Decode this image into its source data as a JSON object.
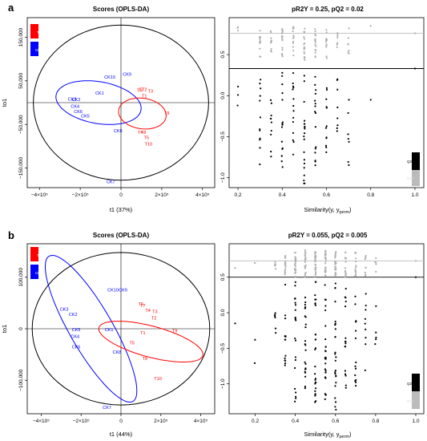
{
  "panels": [
    {
      "letter": "a",
      "scores": {
        "title": "Scores (OPLS-DA)",
        "xlabel": "t1 (37%)",
        "ylabel": "to1",
        "x_ticks": [
          {
            "v": -400000,
            "label": "−4×10⁵"
          },
          {
            "v": -200000,
            "label": "−2×10⁵"
          },
          {
            "v": 0,
            "label": "0"
          },
          {
            "v": 200000,
            "label": "2×10⁵"
          },
          {
            "v": 400000,
            "label": "4×10⁵"
          }
        ],
        "y_ticks": [
          {
            "v": 150000,
            "label": "150,000"
          },
          {
            "v": 50000,
            "label": "50,000"
          },
          {
            "v": -50000,
            "label": "−50,000"
          },
          {
            "v": -150000,
            "label": "−150,000"
          }
        ],
        "legend": [
          {
            "label": "T",
            "color": "#ff0000"
          },
          {
            "label": "CK",
            "color": "#0000ff"
          }
        ]
      },
      "perm": {
        "title": "pR2Y = 0.25, pQ2 = 0.02",
        "xlabel_main": "Similarity(y, y",
        "xlabel_sub": "perm",
        "xlabel_end": ")",
        "x_ticks": [
          {
            "v": 0.2,
            "label": "0.2"
          },
          {
            "v": 0.4,
            "label": "0.4"
          },
          {
            "v": 0.6,
            "label": "0.6"
          },
          {
            "v": 0.8,
            "label": "0.8"
          },
          {
            "v": 1.0,
            "label": "1.0"
          }
        ],
        "y_ticks": [
          {
            "v": 0.5,
            "label": "0.5"
          },
          {
            "v": 0.0,
            "label": "0.0"
          },
          {
            "v": -0.5,
            "label": "−0.5"
          },
          {
            "v": -1.0,
            "label": "−1.0"
          }
        ],
        "legend": [
          {
            "label": "Q2Y",
            "color": "#000000"
          },
          {
            "label": "R2Y",
            "color": "#bbbbbb"
          }
        ]
      }
    },
    {
      "letter": "b",
      "scores": {
        "title": "Scores (OPLS-DA)",
        "xlabel": "t1 (44%)",
        "ylabel": "to1",
        "x_ticks": [
          {
            "v": -400000,
            "label": "−4×10⁵"
          },
          {
            "v": -200000,
            "label": "−2×10⁵"
          },
          {
            "v": 0,
            "label": "0"
          },
          {
            "v": 200000,
            "label": "2×10⁵"
          },
          {
            "v": 400000,
            "label": "4×10⁵"
          }
        ],
        "y_ticks": [
          {
            "v": 100000,
            "label": "100,000"
          },
          {
            "v": 0,
            "label": "0"
          },
          {
            "v": -100000,
            "label": "−100,000"
          }
        ],
        "legend": [
          {
            "label": "T",
            "color": "#ff0000"
          },
          {
            "label": "CK",
            "color": "#0000ff"
          }
        ]
      },
      "perm": {
        "title": "pR2Y = 0.055, pQ2 = 0.005",
        "xlabel_main": "Similarity(y, y",
        "xlabel_sub": "perm",
        "xlabel_end": ")",
        "x_ticks": [
          {
            "v": 0.2,
            "label": "0.2"
          },
          {
            "v": 0.4,
            "label": "0.4"
          },
          {
            "v": 0.6,
            "label": "0.6"
          },
          {
            "v": 0.8,
            "label": "0.8"
          },
          {
            "v": 1.0,
            "label": "1.0"
          }
        ],
        "y_ticks": [
          {
            "v": 0.5,
            "label": "0.5"
          },
          {
            "v": 0.0,
            "label": "0.0"
          },
          {
            "v": -0.5,
            "label": "−0.5"
          },
          {
            "v": -1.0,
            "label": "−1.0"
          }
        ],
        "legend": [
          {
            "label": "Q2Y",
            "color": "#000000"
          },
          {
            "label": "R2Y",
            "color": "#bbbbbb"
          }
        ]
      }
    }
  ],
  "chart_data": [
    {
      "type": "scatter",
      "panel": "a",
      "title": "Scores (OPLS-DA)",
      "xlabel": "t1 (37%)",
      "ylabel": "to1",
      "xlim": [
        -460000,
        460000
      ],
      "ylim": [
        -195000,
        195000
      ],
      "groups": [
        {
          "name": "T",
          "color": "#ff0000",
          "points": [
            {
              "label": "T6",
              "x": 90000,
              "y": 25000
            },
            {
              "label": "T2",
              "x": 115000,
              "y": 27000
            },
            {
              "label": "T7",
              "x": 100000,
              "y": 27000
            },
            {
              "label": "T3",
              "x": 145000,
              "y": 23000
            },
            {
              "label": "T1",
              "x": 115000,
              "y": 12000
            },
            {
              "label": "T9",
              "x": 225000,
              "y": -28000
            },
            {
              "label": "T8",
              "x": 110000,
              "y": -72000
            },
            {
              "label": "T4",
              "x": 95000,
              "y": -72000
            },
            {
              "label": "T5",
              "x": 125000,
              "y": -84000
            },
            {
              "label": "T10",
              "x": 135000,
              "y": -98000
            }
          ]
        },
        {
          "name": "CK",
          "color": "#0000ff",
          "points": [
            {
              "label": "CK9",
              "x": 30000,
              "y": 62000
            },
            {
              "label": "CK10",
              "x": -55000,
              "y": 55000
            },
            {
              "label": "CK1",
              "x": -105000,
              "y": 18000
            },
            {
              "label": "CK3",
              "x": -240000,
              "y": 5000
            },
            {
              "label": "CK2",
              "x": -220000,
              "y": 4000
            },
            {
              "label": "CK4",
              "x": -225000,
              "y": -12000
            },
            {
              "label": "CK6",
              "x": -210000,
              "y": -24000
            },
            {
              "label": "CK5",
              "x": -175000,
              "y": -34000
            },
            {
              "label": "CK8",
              "x": -15000,
              "y": -68000
            },
            {
              "label": "CK7",
              "x": -50000,
              "y": -185000
            }
          ]
        }
      ],
      "ellipses": [
        {
          "color": "#000000",
          "cx": 0,
          "cy": 0,
          "rx": 430000,
          "ry": 178000,
          "angle": 0
        },
        {
          "color": "#0000ff",
          "cx": -110000,
          "cy": 0,
          "rx": 205000,
          "ry": 90000,
          "angle": -80
        },
        {
          "color": "#ff0000",
          "cx": 105000,
          "cy": -25000,
          "rx": 150000,
          "ry": 50000,
          "angle": -82
        }
      ]
    },
    {
      "type": "scatter",
      "panel": "a",
      "title": "pR2Y = 0.25, pQ2 = 0.02",
      "xlabel": "Similarity(y, yperm)",
      "ylabel": "",
      "xlim": [
        0.16,
        1.04
      ],
      "ylim": [
        -1.12,
        0.95
      ],
      "reference_lines": [
        {
          "name": "R2Y",
          "y": 0.76,
          "color": "#bbbbbb"
        },
        {
          "name": "Q2Y",
          "y": 0.33,
          "color": "#000000"
        }
      ],
      "columns": [
        {
          "x": 0.2,
          "r2y_range": [
            0.78,
            0.88
          ],
          "q2y_range": [
            -0.35,
            0.18
          ],
          "n": 3
        },
        {
          "x": 0.3,
          "r2y_range": [
            0.45,
            0.82
          ],
          "q2y_range": [
            -0.85,
            0.3
          ],
          "n": 12
        },
        {
          "x": 0.35,
          "r2y_range": [
            0.45,
            0.82
          ],
          "q2y_range": [
            -0.78,
            0.28
          ],
          "n": 10
        },
        {
          "x": 0.4,
          "r2y_range": [
            0.45,
            0.82
          ],
          "q2y_range": [
            -0.9,
            0.3
          ],
          "n": 16
        },
        {
          "x": 0.45,
          "r2y_range": [
            0.45,
            0.85
          ],
          "q2y_range": [
            -0.8,
            0.3
          ],
          "n": 14
        },
        {
          "x": 0.5,
          "r2y_range": [
            0.42,
            0.85
          ],
          "q2y_range": [
            -1.08,
            0.38
          ],
          "n": 20
        },
        {
          "x": 0.55,
          "r2y_range": [
            0.45,
            0.82
          ],
          "q2y_range": [
            -0.9,
            0.3
          ],
          "n": 16
        },
        {
          "x": 0.6,
          "r2y_range": [
            0.45,
            0.82
          ],
          "q2y_range": [
            -0.72,
            0.28
          ],
          "n": 12
        },
        {
          "x": 0.65,
          "r2y_range": [
            0.45,
            0.82
          ],
          "q2y_range": [
            -0.68,
            0.2
          ],
          "n": 8
        },
        {
          "x": 0.7,
          "r2y_range": [
            0.5,
            0.82
          ],
          "q2y_range": [
            -0.85,
            0.2
          ],
          "n": 7
        },
        {
          "x": 0.8,
          "r2y_range": [
            0.85,
            0.85
          ],
          "q2y_range": [
            -0.05,
            -0.05
          ],
          "n": 1
        },
        {
          "x": 1.0,
          "r2y_range": [
            0.76,
            0.76
          ],
          "q2y_range": [
            0.33,
            0.33
          ],
          "n": 1
        }
      ]
    },
    {
      "type": "scatter",
      "panel": "b",
      "title": "Scores (OPLS-DA)",
      "xlabel": "t1 (44%)",
      "ylabel": "to1",
      "xlim": [
        -470000,
        470000
      ],
      "ylim": [
        -165000,
        165000
      ],
      "groups": [
        {
          "name": "T",
          "color": "#ff0000",
          "points": [
            {
              "label": "T6",
              "x": 100000,
              "y": 45000
            },
            {
              "label": "T7",
              "x": 110000,
              "y": 42000
            },
            {
              "label": "T4",
              "x": 135000,
              "y": 33000
            },
            {
              "label": "T3",
              "x": 170000,
              "y": 30000
            },
            {
              "label": "T2",
              "x": 165000,
              "y": 18000
            },
            {
              "label": "T1",
              "x": 110000,
              "y": -11000
            },
            {
              "label": "T9",
              "x": 270000,
              "y": -7000
            },
            {
              "label": "T5",
              "x": 55000,
              "y": -30000
            },
            {
              "label": "T8",
              "x": 120000,
              "y": -61000
            },
            {
              "label": "T10",
              "x": 185000,
              "y": -100000
            }
          ]
        },
        {
          "name": "CK",
          "color": "#0000ff",
          "points": [
            {
              "label": "CK10",
              "x": -40000,
              "y": 72000
            },
            {
              "label": "CK9",
              "x": 10000,
              "y": 72000
            },
            {
              "label": "CK3",
              "x": -285000,
              "y": 35000
            },
            {
              "label": "CK2",
              "x": -240000,
              "y": 25000
            },
            {
              "label": "CK5",
              "x": -225000,
              "y": -5000
            },
            {
              "label": "CK1",
              "x": -60000,
              "y": -5000
            },
            {
              "label": "CK4",
              "x": -230000,
              "y": -18000
            },
            {
              "label": "CK6",
              "x": -225000,
              "y": -38000
            },
            {
              "label": "CK8",
              "x": -20000,
              "y": -48000
            },
            {
              "label": "CK7",
              "x": -70000,
              "y": -156000
            }
          ]
        }
      ],
      "ellipses": [
        {
          "color": "#000000",
          "cx": 0,
          "cy": 0,
          "rx": 445000,
          "ry": 148000,
          "angle": 0
        },
        {
          "color": "#0000ff",
          "cx": -150000,
          "cy": 0,
          "rx": 215000,
          "ry": 148000,
          "angle": -30
        },
        {
          "color": "#ff0000",
          "cx": 150000,
          "cy": -25000,
          "rx": 155000,
          "ry": 95000,
          "angle": -75
        }
      ]
    },
    {
      "type": "scatter",
      "panel": "b",
      "title": "pR2Y = 0.055, pQ2 = 0.005",
      "xlabel": "Similarity(y, yperm)",
      "ylabel": "",
      "xlim": [
        0.07,
        1.04
      ],
      "ylim": [
        -1.42,
        0.97
      ],
      "reference_lines": [
        {
          "name": "R2Y",
          "y": 0.73,
          "color": "#bbbbbb"
        },
        {
          "name": "Q2Y",
          "y": 0.5,
          "color": "#000000"
        }
      ],
      "columns": [
        {
          "x": 0.1,
          "r2y_range": [
            0.63,
            0.63
          ],
          "q2y_range": [
            -0.15,
            -0.15
          ],
          "n": 1
        },
        {
          "x": 0.2,
          "r2y_range": [
            0.7,
            0.7
          ],
          "q2y_range": [
            -0.92,
            -0.12
          ],
          "n": 2
        },
        {
          "x": 0.3,
          "r2y_range": [
            0.5,
            0.75
          ],
          "q2y_range": [
            -0.5,
            0.05
          ],
          "n": 6
        },
        {
          "x": 0.35,
          "r2y_range": [
            0.5,
            0.8
          ],
          "q2y_range": [
            -1.0,
            0.45
          ],
          "n": 14
        },
        {
          "x": 0.4,
          "r2y_range": [
            0.5,
            0.85
          ],
          "q2y_range": [
            -1.25,
            0.45
          ],
          "n": 22
        },
        {
          "x": 0.45,
          "r2y_range": [
            0.5,
            0.88
          ],
          "q2y_range": [
            -1.1,
            0.45
          ],
          "n": 24
        },
        {
          "x": 0.5,
          "r2y_range": [
            0.5,
            0.88
          ],
          "q2y_range": [
            -1.28,
            0.45
          ],
          "n": 28
        },
        {
          "x": 0.55,
          "r2y_range": [
            0.5,
            0.88
          ],
          "q2y_range": [
            -1.25,
            0.45
          ],
          "n": 26
        },
        {
          "x": 0.6,
          "r2y_range": [
            0.5,
            0.88
          ],
          "q2y_range": [
            -1.38,
            0.45
          ],
          "n": 26
        },
        {
          "x": 0.65,
          "r2y_range": [
            0.5,
            0.85
          ],
          "q2y_range": [
            -1.1,
            0.4
          ],
          "n": 16
        },
        {
          "x": 0.7,
          "r2y_range": [
            0.5,
            0.85
          ],
          "q2y_range": [
            -1.05,
            0.35
          ],
          "n": 14
        },
        {
          "x": 0.75,
          "r2y_range": [
            0.5,
            0.82
          ],
          "q2y_range": [
            -0.9,
            0.3
          ],
          "n": 9
        },
        {
          "x": 0.8,
          "r2y_range": [
            0.55,
            0.85
          ],
          "q2y_range": [
            -0.45,
            0.2
          ],
          "n": 5
        },
        {
          "x": 1.0,
          "r2y_range": [
            0.73,
            0.73
          ],
          "q2y_range": [
            0.5,
            0.5
          ],
          "n": 1
        }
      ]
    }
  ]
}
